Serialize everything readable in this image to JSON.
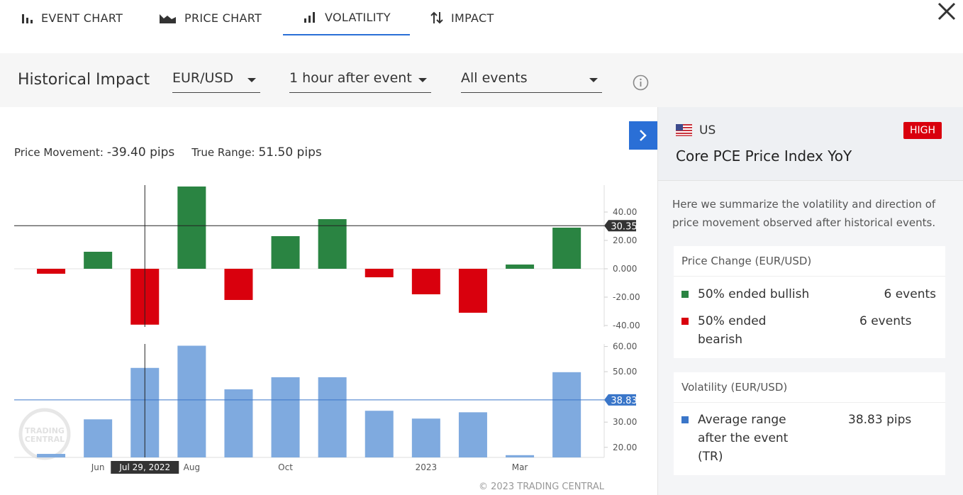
{
  "tabs": [
    {
      "label": "EVENT CHART"
    },
    {
      "label": "PRICE CHART"
    },
    {
      "label": "VOLATILITY"
    },
    {
      "label": "IMPACT"
    }
  ],
  "active_tab": 2,
  "toolbar": {
    "title": "Historical Impact",
    "currency": "EUR/USD",
    "timeframe": "1 hour after event",
    "filter": "All events"
  },
  "stats": {
    "price_movement_label": "Price Movement:",
    "price_movement": "-39.40 pips",
    "true_range_label": "True Range:",
    "true_range": "51.50 pips"
  },
  "chart_data": [
    {
      "type": "bar",
      "values": [
        -3.5,
        12,
        -39.4,
        58,
        -22,
        23,
        35,
        -6,
        -18,
        -31,
        3,
        29
      ],
      "colors": {
        "positive": "#2a8442",
        "negative": "#d9000d"
      },
      "ylim": [
        -41,
        59
      ],
      "yticks": [
        {
          "value": 40,
          "label": "40.00"
        },
        {
          "value": 20,
          "label": "20.00"
        },
        {
          "value": 0,
          "label": "0.000"
        },
        {
          "value": -20,
          "label": "-20.00"
        },
        {
          "value": -40,
          "label": "-40.00"
        }
      ],
      "crosshair": 30.35
    },
    {
      "type": "bar",
      "categories": [
        null,
        "Jun",
        "Jul 29, 2022",
        "Aug",
        null,
        "Oct",
        null,
        null,
        "2023",
        null,
        "Mar",
        null
      ],
      "values": [
        17.4,
        31.1,
        51.5,
        60.3,
        43,
        47.8,
        47.8,
        34.5,
        31.4,
        33.9,
        16.9,
        49.8
      ],
      "color": "#7faadf",
      "selected": 2,
      "ylim": [
        16,
        61
      ],
      "yticks": [
        {
          "value": 60,
          "label": "60.00"
        },
        {
          "value": 50,
          "label": "50.00"
        },
        {
          "value": 30,
          "label": "30.00"
        },
        {
          "value": 20,
          "label": "20.00"
        }
      ],
      "average": 38.83
    }
  ],
  "footer": "© 2023 TRADING CENTRAL",
  "watermark": [
    "TRADING",
    "CENTRAL"
  ],
  "panel": {
    "country": "US",
    "impact": "HIGH",
    "event": "Core PCE Price Index YoY",
    "description": "Here we summarize the volatility and direction of price movement observed after historical events.",
    "cards": [
      {
        "title": "Price Change (EUR/USD)",
        "rows": [
          {
            "color": "#2a8442",
            "label": "50% ended bullish",
            "value": "6 events"
          },
          {
            "color": "#d9000d",
            "label": "50% ended bearish",
            "value": "6 events"
          }
        ]
      },
      {
        "title": "Volatility (EUR/USD)",
        "rows": [
          {
            "color": "#3a76c9",
            "label": "Average range after the event (TR)",
            "value": "38.83 pips"
          }
        ]
      }
    ]
  }
}
